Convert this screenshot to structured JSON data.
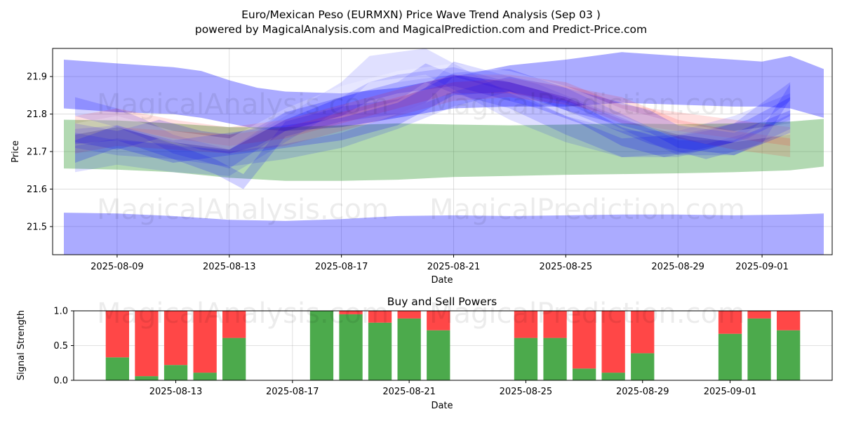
{
  "chart_data": [
    {
      "type": "area",
      "title_line1": "Euro/Mexican Peso (EURMXN) Price Wave Trend Analysis (Sep 03 )",
      "title_line2": "powered by MagicalAnalysis.com and MagicalPrediction.com and Predict-Price.com",
      "xlabel": "Date",
      "ylabel": "Price",
      "ylim": [
        21.425,
        21.975
      ],
      "xlim": [
        -2.3,
        25.5
      ],
      "y_ticks": [
        21.5,
        21.6,
        21.7,
        21.8,
        21.9
      ],
      "y_tick_labels": [
        "21.5",
        "21.6",
        "21.7",
        "21.8",
        "21.9"
      ],
      "x_ticks": [
        0,
        4,
        8,
        12,
        16,
        20,
        23
      ],
      "x_tick_labels": [
        "2025-08-09",
        "2025-08-13",
        "2025-08-17",
        "2025-08-21",
        "2025-08-25",
        "2025-08-29",
        "2025-09-01"
      ],
      "grid": true,
      "bands": [
        {
          "name": "upper wave band",
          "color": "#0000ff",
          "opacity": 0.33,
          "x": [
            -1.9,
            0,
            2,
            3,
            4,
            5,
            6,
            8,
            10,
            12,
            14,
            16,
            18,
            20,
            22,
            23,
            24,
            25.2
          ],
          "upper": [
            21.945,
            21.935,
            21.925,
            21.915,
            21.89,
            21.87,
            21.86,
            21.855,
            21.87,
            21.9,
            21.93,
            21.945,
            21.965,
            21.955,
            21.945,
            21.94,
            21.955,
            21.92
          ],
          "lower": [
            21.815,
            21.805,
            21.8,
            21.79,
            21.775,
            21.76,
            21.755,
            21.765,
            21.79,
            21.815,
            21.82,
            21.82,
            21.83,
            21.825,
            21.82,
            21.82,
            21.815,
            21.79
          ]
        },
        {
          "name": "green wave band",
          "color": "#008000",
          "opacity": 0.3,
          "x": [
            -1.9,
            0,
            2,
            4,
            6,
            8,
            10,
            12,
            14,
            16,
            18,
            20,
            22,
            24,
            25.2
          ],
          "upper": [
            21.785,
            21.783,
            21.775,
            21.765,
            21.765,
            21.77,
            21.775,
            21.772,
            21.77,
            21.772,
            21.775,
            21.773,
            21.775,
            21.78,
            21.787
          ],
          "lower": [
            21.655,
            21.652,
            21.645,
            21.63,
            21.622,
            21.622,
            21.625,
            21.632,
            21.635,
            21.638,
            21.64,
            21.642,
            21.645,
            21.65,
            21.66
          ]
        },
        {
          "name": "lower wave band",
          "color": "#0000ff",
          "opacity": 0.33,
          "x": [
            -1.9,
            0,
            2,
            4,
            6,
            8,
            10,
            12,
            14,
            16,
            18,
            20,
            22,
            24,
            25.2
          ],
          "upper": [
            21.537,
            21.535,
            21.528,
            21.518,
            21.515,
            21.52,
            21.528,
            21.53,
            21.528,
            21.53,
            21.532,
            21.532,
            21.53,
            21.532,
            21.535
          ],
          "lower": [
            21.42,
            21.42,
            21.42,
            21.42,
            21.42,
            21.42,
            21.42,
            21.42,
            21.42,
            21.42,
            21.42,
            21.42,
            21.42,
            21.42,
            21.42
          ]
        }
      ],
      "wave_series": [
        {
          "color": "#0000ff",
          "opacity": 0.2,
          "width": 0.05,
          "x": [
            -1.5,
            0,
            1.5,
            3,
            4,
            5,
            6,
            7,
            8,
            9,
            10,
            12,
            13.5,
            15,
            16.5,
            18,
            19.5,
            21,
            22.5,
            24
          ],
          "y": [
            21.75,
            21.73,
            21.76,
            21.73,
            21.72,
            21.74,
            21.78,
            21.8,
            21.82,
            21.86,
            21.88,
            21.9,
            21.87,
            21.84,
            21.8,
            21.74,
            21.71,
            21.73,
            21.76,
            21.82
          ]
        },
        {
          "color": "#0000ff",
          "opacity": 0.16,
          "width": 0.05,
          "x": [
            -1.5,
            0,
            1,
            2,
            3,
            4,
            5,
            6,
            8,
            9,
            10,
            11,
            12,
            14,
            16,
            18,
            20,
            22,
            24
          ],
          "y": [
            21.82,
            21.79,
            21.76,
            21.72,
            21.7,
            21.68,
            21.73,
            21.78,
            21.82,
            21.84,
            21.86,
            21.91,
            21.88,
            21.84,
            21.77,
            21.71,
            21.72,
            21.75,
            21.86
          ]
        },
        {
          "color": "#0000ff",
          "opacity": 0.18,
          "width": 0.04,
          "x": [
            -1.5,
            0,
            2,
            3.5,
            4.5,
            6,
            8,
            10,
            11,
            12,
            13,
            15,
            17,
            19,
            21,
            23,
            24
          ],
          "y": [
            21.74,
            21.75,
            21.7,
            21.66,
            21.62,
            21.76,
            21.8,
            21.82,
            21.85,
            21.92,
            21.9,
            21.86,
            21.8,
            21.74,
            21.7,
            21.74,
            21.86
          ]
        },
        {
          "color": "#ff0000",
          "opacity": 0.12,
          "width": 0.05,
          "x": [
            -1.5,
            0,
            2,
            4,
            6,
            8,
            10,
            12,
            14,
            16,
            18,
            20,
            22,
            24
          ],
          "y": [
            21.77,
            21.79,
            21.76,
            21.74,
            21.76,
            21.8,
            21.84,
            21.88,
            21.88,
            21.86,
            21.8,
            21.78,
            21.76,
            21.74
          ]
        },
        {
          "color": "#ff0000",
          "opacity": 0.12,
          "width": 0.05,
          "x": [
            -1.5,
            0,
            2,
            4,
            6,
            8,
            10,
            12,
            14,
            16,
            18,
            20,
            22,
            24
          ],
          "y": [
            21.72,
            21.74,
            21.73,
            21.72,
            21.74,
            21.78,
            21.82,
            21.86,
            21.87,
            21.85,
            21.82,
            21.76,
            21.73,
            21.71
          ]
        },
        {
          "color": "#0000ff",
          "opacity": 0.2,
          "width": 0.06,
          "x": [
            -1.5,
            0,
            2,
            4,
            5,
            6,
            8,
            10,
            12,
            14,
            16,
            18,
            19,
            20,
            22,
            24
          ],
          "y": [
            21.7,
            21.74,
            21.7,
            21.72,
            21.73,
            21.74,
            21.76,
            21.8,
            21.88,
            21.89,
            21.84,
            21.8,
            21.78,
            21.74,
            21.72,
            21.78
          ]
        },
        {
          "color": "#0000ff",
          "opacity": 0.12,
          "width": 0.07,
          "x": [
            -1.5,
            0,
            2,
            4,
            6,
            8,
            9,
            10,
            11,
            12,
            13,
            14,
            16,
            18,
            20,
            22,
            24
          ],
          "y": [
            21.68,
            21.7,
            21.68,
            21.67,
            21.76,
            21.85,
            21.92,
            21.93,
            21.94,
            21.9,
            21.86,
            21.82,
            21.76,
            21.72,
            21.72,
            21.76,
            21.82
          ]
        },
        {
          "color": "#ffffff",
          "opacity": 0.22,
          "width": 0.03,
          "x": [
            -1.5,
            0,
            2,
            4,
            6,
            8,
            10,
            12,
            14,
            16,
            18,
            20,
            22,
            24
          ],
          "y": [
            21.76,
            21.78,
            21.74,
            21.72,
            21.8,
            21.86,
            21.9,
            21.92,
            21.9,
            21.86,
            21.8,
            21.76,
            21.74,
            21.76
          ]
        },
        {
          "color": "#0000ff",
          "opacity": 0.14,
          "width": 0.04,
          "x": [
            -1.5,
            0,
            2,
            4,
            6,
            8,
            10,
            12,
            14,
            16,
            18,
            20,
            22,
            24
          ],
          "y": [
            21.73,
            21.71,
            21.7,
            21.68,
            21.7,
            21.73,
            21.78,
            21.84,
            21.88,
            21.85,
            21.78,
            21.71,
            21.71,
            21.78
          ]
        }
      ]
    },
    {
      "type": "bar",
      "stacked": true,
      "title": "Buy and Sell Powers",
      "xlabel": "Date",
      "ylabel": "Signal Strength",
      "ylim": [
        0,
        1.0
      ],
      "xlim": [
        -0.5,
        25.5
      ],
      "y_ticks": [
        0.0,
        0.5,
        1.0
      ],
      "y_tick_labels": [
        "0.0",
        "0.5",
        "1.0"
      ],
      "x_ticks": [
        3,
        7,
        11,
        15,
        19,
        22
      ],
      "x_tick_labels": [
        "2025-08-13",
        "2025-08-17",
        "2025-08-21",
        "2025-08-25",
        "2025-08-29",
        "2025-09-01"
      ],
      "grid": true,
      "buy_color": "#4caa4c",
      "sell_color": "#ff4747",
      "x": [
        1,
        2,
        3,
        4,
        5,
        8,
        9,
        10,
        11,
        12,
        15,
        16,
        17,
        18,
        19,
        22,
        23,
        24
      ],
      "series": [
        {
          "name": "Buy",
          "values": [
            0.33,
            0.06,
            0.22,
            0.11,
            0.61,
            1.0,
            0.95,
            0.83,
            0.89,
            0.72,
            0.61,
            0.61,
            0.17,
            0.11,
            0.39,
            0.67,
            0.89,
            0.72
          ]
        },
        {
          "name": "Sell",
          "values": [
            0.67,
            0.94,
            0.78,
            0.89,
            0.39,
            0.0,
            0.05,
            0.17,
            0.11,
            0.28,
            0.39,
            0.39,
            0.83,
            0.89,
            0.61,
            0.33,
            0.11,
            0.28
          ]
        }
      ]
    }
  ],
  "watermarks": [
    "MagicalAnalysis.com",
    "MagicalPrediction.com"
  ]
}
